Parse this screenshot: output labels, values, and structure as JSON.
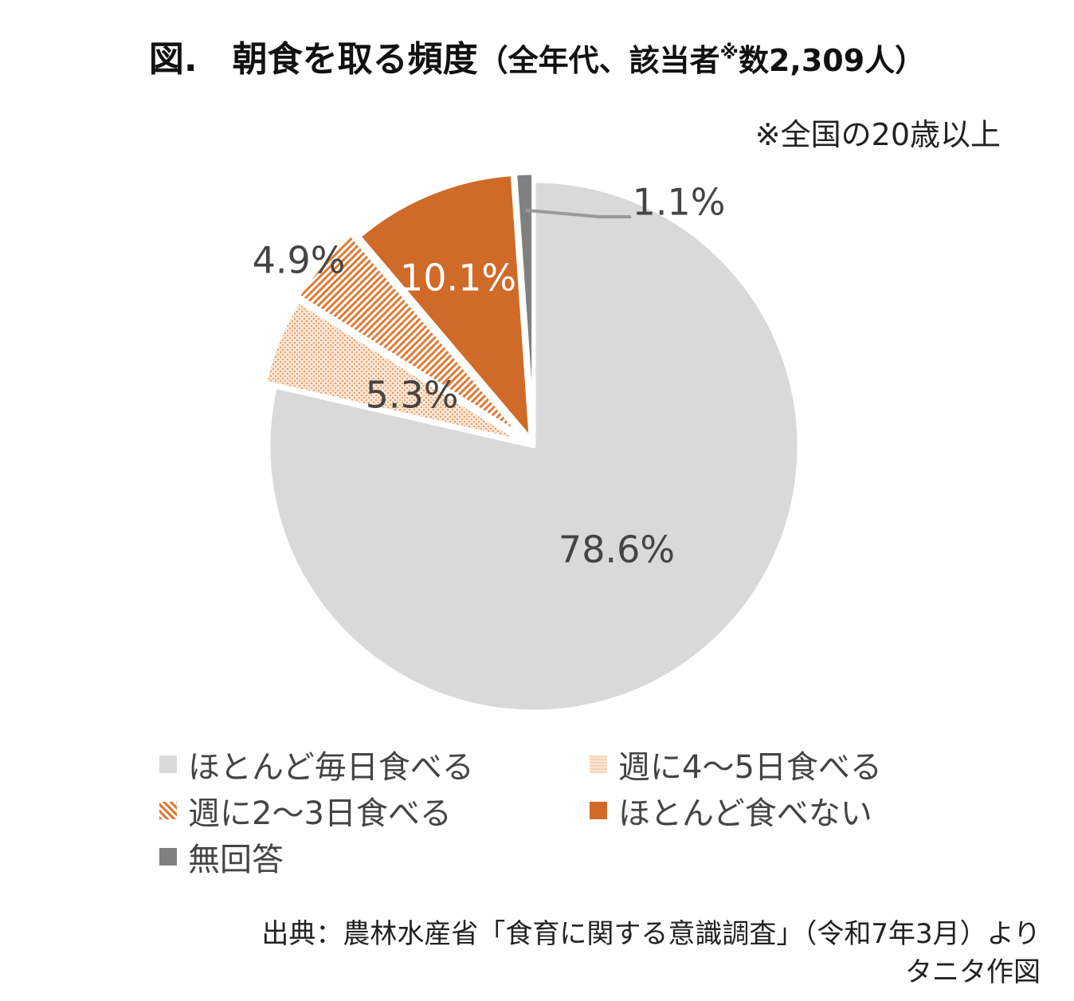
{
  "title": {
    "main": "図.　朝食を取る頻度",
    "sub_open": "（全年代、該当者",
    "sup": "※",
    "sub_close": "数2,309人）"
  },
  "note": "※全国の20歳以上",
  "source": {
    "line1": "出典：農林水産省「食育に関する意識調査」（令和7年3月）より",
    "line2": "タニタ作図"
  },
  "chart_data": {
    "type": "pie",
    "title": "",
    "start_angle_deg": 0,
    "direction": "clockwise",
    "legend_position": "bottom",
    "slices": [
      {
        "label": "ほとんど毎日食べる",
        "value": 78.6,
        "value_label": "78.6%",
        "color": "#d9d9d9",
        "pattern": "solid",
        "label_color": "#444444"
      },
      {
        "label": "週に4～5日食べる",
        "value": 5.3,
        "value_label": "5.3%",
        "color": "#f3c6a4",
        "pattern": "dots",
        "label_color": "#444444"
      },
      {
        "label": "週に2～3日食べる",
        "value": 4.9,
        "value_label": "4.9%",
        "color": "#e0894d",
        "pattern": "diagonal",
        "label_color": "#444444"
      },
      {
        "label": "ほとんど食べない",
        "value": 10.1,
        "value_label": "10.1%",
        "color": "#d06a28",
        "pattern": "solid",
        "label_color": "#ffffff"
      },
      {
        "label": "無回答",
        "value": 1.1,
        "value_label": "1.1%",
        "color": "#808080",
        "pattern": "solid",
        "label_color": "#444444"
      }
    ]
  }
}
